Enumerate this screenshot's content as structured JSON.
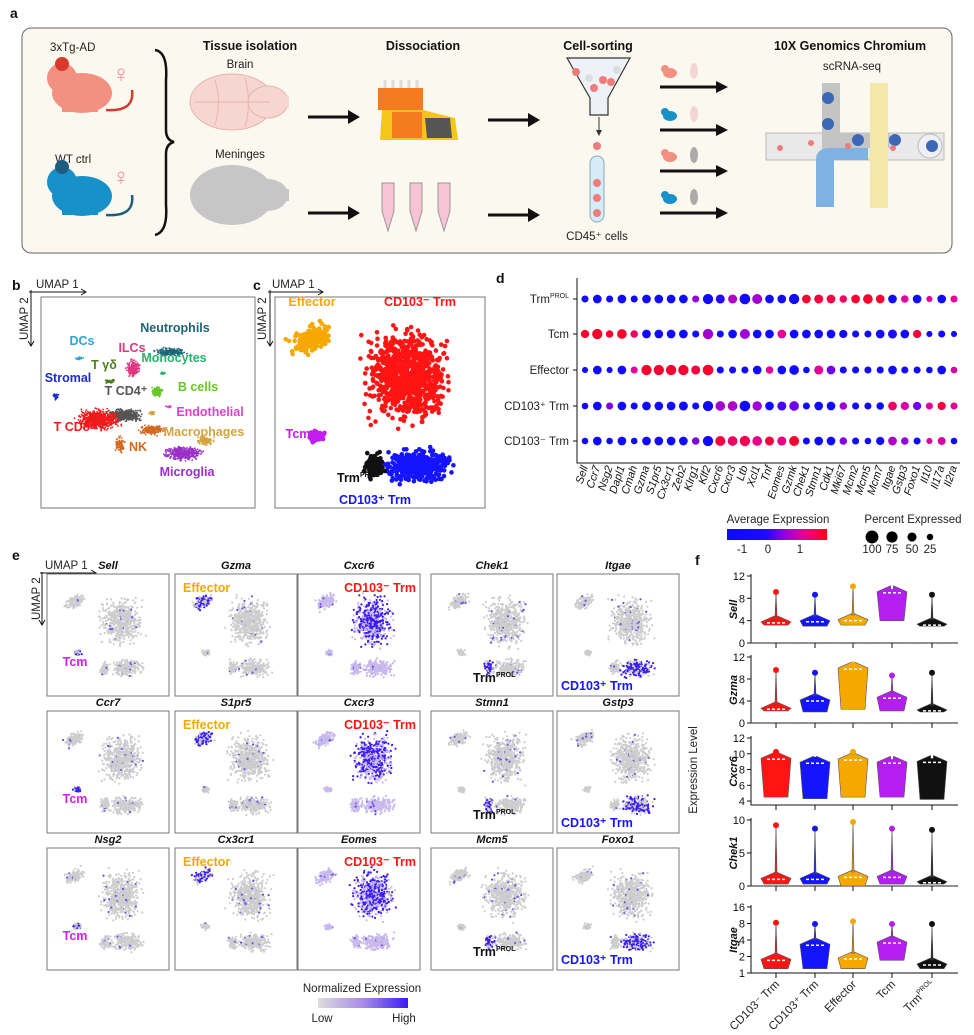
{
  "panel_labels": {
    "a": "a",
    "b": "b",
    "c": "c",
    "d": "d",
    "e": "e",
    "f": "f"
  },
  "panel_a": {
    "group_top": "3xTg-AD",
    "group_bottom": "WT ctrl",
    "female_symbol": "♀",
    "tissue_title": "Tissue isolation",
    "brain": "Brain",
    "meninges": "Meninges",
    "dissociation_title": "Dissociation",
    "sorting_title": "Cell-sorting",
    "cells_label": "CD45⁺ cells",
    "platform_title": "10X Genomics Chromium",
    "assay": "scRNA-seq",
    "colors": {
      "tg": "#f4907f",
      "wt": "#1890c8",
      "panel_bg": "#fbf8ef"
    }
  },
  "panel_b": {
    "axis_x": "UMAP 1",
    "axis_y": "UMAP 2",
    "clusters": [
      {
        "name": "Neutrophils",
        "color": "#1d6476"
      },
      {
        "name": "DCs",
        "color": "#2ba3d8"
      },
      {
        "name": "ILCs",
        "color": "#e0357e"
      },
      {
        "name": "Monocytes",
        "color": "#27b46a"
      },
      {
        "name": "T γδ",
        "color": "#4f7d1e"
      },
      {
        "name": "Stromal",
        "color": "#1b2bd3"
      },
      {
        "name": "B cells",
        "color": "#66c62a"
      },
      {
        "name": "T CD4⁺",
        "color": "#555555"
      },
      {
        "name": "Endothelial",
        "color": "#e23fd2"
      },
      {
        "name": "T CD8⁺",
        "color": "#ee1c1c"
      },
      {
        "name": "Macrophages",
        "color": "#d4a33e"
      },
      {
        "name": "NK",
        "color": "#d2691e"
      },
      {
        "name": "Microglia",
        "color": "#9a2fc8"
      }
    ]
  },
  "panel_c": {
    "axis_x": "UMAP 1",
    "axis_y": "UMAP 2",
    "clusters": [
      {
        "key": "cd103neg",
        "name": "CD103⁻ Trm",
        "sup": "",
        "color": "#ff1414"
      },
      {
        "key": "cd103pos",
        "name": "CD103⁺ Trm",
        "sup": "",
        "color": "#1414ff"
      },
      {
        "key": "prol",
        "name": "Trm",
        "sup": "PROL",
        "color": "#111111"
      },
      {
        "key": "tcm",
        "name": "Tcm",
        "sup": "",
        "color": "#c21ef0"
      },
      {
        "key": "effector",
        "name": "Effector",
        "sup": "",
        "color": "#f5a800"
      }
    ]
  },
  "chart_data": [
    {
      "id": "dotplot",
      "type": "scatter",
      "title": "",
      "rows": [
        {
          "name": "Trm",
          "sup": "PROL"
        },
        {
          "name": "Tcm",
          "sup": ""
        },
        {
          "name": "Effector",
          "sup": ""
        },
        {
          "name": "CD103⁺ Trm",
          "sup": ""
        },
        {
          "name": "CD103⁻ Trm",
          "sup": ""
        }
      ],
      "genes": [
        "Sell",
        "Ccr7",
        "Nsg2",
        "Dapl1",
        "Cmah",
        "Gzma",
        "S1pr5",
        "Cx3cr1",
        "Zeb2",
        "Klrg1",
        "Klf2",
        "Cxcr6",
        "Cxcr3",
        "Ltb",
        "Xcl1",
        "Tnf",
        "Eomes",
        "Gzmk",
        "Chek1",
        "Stmn1",
        "Cdk1",
        "Mki67",
        "Mcm2",
        "Mcm5",
        "Mcm7",
        "Itgae",
        "Gstp3",
        "Foxo1",
        "Il10",
        "Il17a",
        "Il2ra"
      ],
      "avg_expression": [
        [
          -1,
          -1,
          -1,
          -1,
          -1,
          -1,
          -1,
          -1,
          -1,
          0.3,
          -1,
          -0.3,
          0.5,
          -1,
          0.4,
          -1,
          -1,
          -1,
          1.5,
          1.4,
          1.4,
          1.2,
          1.5,
          1.5,
          1.5,
          -1,
          0.9,
          -1,
          0.9,
          -1,
          0.9
        ],
        [
          1.5,
          1.5,
          1.5,
          1.5,
          1.2,
          -1,
          -1,
          -1,
          -1,
          -1,
          0.4,
          -1,
          -1,
          0.4,
          -1,
          -1,
          0.9,
          -1,
          -1,
          -1,
          -1,
          -1,
          -1,
          -1,
          -1,
          -0.3,
          -1,
          1.4,
          -1,
          -1,
          -1
        ],
        [
          -1,
          -1,
          -1,
          -1,
          0.9,
          1.5,
          1.5,
          1.5,
          1.5,
          1.4,
          1.5,
          -1,
          -1,
          -1,
          -1,
          0.9,
          -1,
          -1,
          -1,
          0.9,
          0.1,
          -1,
          -1,
          -1,
          -1,
          -1,
          -1,
          -1,
          -1,
          -1,
          0.8
        ],
        [
          -1,
          -1,
          0.2,
          -1,
          -1,
          -1,
          -1,
          -1,
          -1,
          -1,
          -1,
          0.4,
          0.5,
          -1,
          0.4,
          -1,
          -0.1,
          0.1,
          -1,
          -1,
          -1,
          0.4,
          -1,
          -1,
          -1,
          1.2,
          0.8,
          0.1,
          0.9,
          1.4,
          0.9
        ],
        [
          -1,
          -1,
          -1,
          -1,
          -1,
          -1,
          -1,
          -1,
          -1,
          0.2,
          -1,
          1.4,
          1.2,
          1.3,
          1.0,
          1.4,
          1.0,
          1.5,
          -1,
          -1,
          -1,
          0.2,
          -1,
          -1,
          -1,
          0.5,
          0.3,
          -1,
          0.8,
          0.8,
          -1
        ]
      ],
      "percent_expressed": [
        [
          40,
          60,
          40,
          60,
          40,
          60,
          60,
          60,
          60,
          40,
          85,
          65,
          65,
          90,
          80,
          60,
          60,
          85,
          60,
          65,
          60,
          45,
          60,
          75,
          60,
          60,
          45,
          60,
          30,
          60,
          40
        ],
        [
          55,
          85,
          45,
          75,
          45,
          60,
          60,
          60,
          60,
          40,
          85,
          40,
          60,
          80,
          60,
          60,
          60,
          60,
          60,
          60,
          60,
          55,
          40,
          40,
          60,
          65,
          60,
          55,
          30,
          40,
          30
        ],
        [
          30,
          60,
          30,
          60,
          40,
          85,
          85,
          85,
          85,
          65,
          90,
          40,
          40,
          40,
          60,
          45,
          60,
          75,
          35,
          65,
          60,
          40,
          40,
          40,
          40,
          60,
          40,
          40,
          35,
          60,
          35
        ],
        [
          35,
          60,
          40,
          60,
          40,
          60,
          60,
          60,
          65,
          40,
          85,
          75,
          75,
          90,
          70,
          60,
          65,
          75,
          40,
          60,
          60,
          45,
          40,
          40,
          45,
          60,
          55,
          55,
          40,
          55,
          40
        ],
        [
          35,
          60,
          35,
          60,
          35,
          60,
          60,
          60,
          60,
          45,
          85,
          80,
          75,
          85,
          75,
          65,
          65,
          80,
          40,
          60,
          60,
          45,
          40,
          35,
          55,
          60,
          45,
          40,
          30,
          50,
          35
        ]
      ],
      "color_legend": {
        "title": "Average Expression",
        "ticks": [
          "-1",
          "0",
          "1"
        ]
      },
      "size_legend": {
        "title": "Percent Expressed",
        "values": [
          100,
          75,
          50,
          25
        ],
        "labels": [
          "100",
          "75",
          "50",
          "25"
        ]
      }
    },
    {
      "id": "violins",
      "type": "violin",
      "ylabel": "Expression Level",
      "groups": [
        {
          "name": "CD103⁻ Trm",
          "color": "#ff1414"
        },
        {
          "name": "CD103⁺ Trm",
          "color": "#1414ff"
        },
        {
          "name": "Effector",
          "color": "#f5a800"
        },
        {
          "name": "Tcm",
          "color": "#b41ef0"
        },
        {
          "name": "Trm",
          "sup": "PROL",
          "color": "#111111"
        }
      ],
      "genes": [
        {
          "name": "Sell",
          "scale": "linear",
          "ylim": [
            0,
            12
          ],
          "ticks": [
            0,
            4,
            8,
            12
          ],
          "stats": [
            [
              3.2,
              9.5,
              3.6
            ],
            [
              3.0,
              9.0,
              3.8
            ],
            [
              3.2,
              10.5,
              4.0
            ],
            [
              4.0,
              9.5,
              9.0
            ],
            [
              3.0,
              9.0,
              3.2
            ]
          ]
        },
        {
          "name": "Gzma",
          "scale": "linear",
          "ylim": [
            0,
            12
          ],
          "ticks": [
            0,
            4,
            8,
            12
          ],
          "stats": [
            [
              2.2,
              10,
              2.5
            ],
            [
              2.0,
              9.5,
              4.0
            ],
            [
              2.5,
              11,
              9.8
            ],
            [
              2.2,
              9.0,
              4.5
            ],
            [
              2.0,
              9.5,
              2.2
            ]
          ]
        },
        {
          "name": "Cxcr6",
          "scale": "linear",
          "ylim": [
            3.5,
            12
          ],
          "ticks": [
            4,
            6,
            8,
            10,
            12
          ],
          "stats": [
            [
              4.5,
              10.5,
              9.3
            ],
            [
              4.3,
              9.5,
              8.8
            ],
            [
              4.5,
              10.5,
              9.2
            ],
            [
              4.5,
              9.2,
              8.8
            ],
            [
              4.2,
              9.3,
              8.9
            ]
          ]
        },
        {
          "name": "Chek1",
          "scale": "linear",
          "ylim": [
            0,
            10
          ],
          "ticks": [
            0,
            5,
            10
          ],
          "stats": [
            [
              0.3,
              9.5,
              1.0
            ],
            [
              0.3,
              9.0,
              1.0
            ],
            [
              0.0,
              10,
              1.3
            ],
            [
              0.3,
              9.0,
              1.3
            ],
            [
              0.3,
              8.8,
              0.5
            ]
          ]
        },
        {
          "name": "Itgae",
          "scale": "log2",
          "ylim": [
            1,
            16
          ],
          "ticks": [
            1,
            2,
            4,
            8,
            16
          ],
          "stats": [
            [
              1.2,
              9.0,
              1.7
            ],
            [
              1.2,
              8.5,
              3.2
            ],
            [
              1.2,
              9.5,
              1.8
            ],
            [
              1.7,
              8.5,
              3.5
            ],
            [
              1.2,
              8.5,
              1.4
            ]
          ]
        }
      ]
    }
  ],
  "panel_e": {
    "axis_x": "UMAP 1",
    "axis_y": "UMAP 2",
    "plots": [
      {
        "gene": "Sell",
        "label": "Tcm",
        "sup": "",
        "target": "tcm"
      },
      {
        "gene": "Gzma",
        "label": "Effector",
        "sup": "",
        "target": "effector"
      },
      {
        "gene": "Cxcr6",
        "label": "CD103⁻ Trm",
        "sup": "",
        "target": "cd103neg"
      },
      {
        "gene": "Chek1",
        "label": "Trm",
        "sup": "PROL",
        "target": "prol"
      },
      {
        "gene": "Itgae",
        "label": "CD103⁺ Trm",
        "sup": "",
        "target": "cd103pos"
      },
      {
        "gene": "Ccr7",
        "label": "Tcm",
        "sup": "",
        "target": "tcm"
      },
      {
        "gene": "S1pr5",
        "label": "Effector",
        "sup": "",
        "target": "effector"
      },
      {
        "gene": "Cxcr3",
        "label": "CD103⁻ Trm",
        "sup": "",
        "target": "cd103neg"
      },
      {
        "gene": "Stmn1",
        "label": "Trm",
        "sup": "PROL",
        "target": "prol"
      },
      {
        "gene": "Gstp3",
        "label": "CD103⁺ Trm",
        "sup": "",
        "target": "cd103pos"
      },
      {
        "gene": "Nsg2",
        "label": "Tcm",
        "sup": "",
        "target": "tcm"
      },
      {
        "gene": "Cx3cr1",
        "label": "Effector",
        "sup": "",
        "target": "effector"
      },
      {
        "gene": "Eomes",
        "label": "CD103⁻ Trm",
        "sup": "",
        "target": "cd103neg"
      },
      {
        "gene": "Mcm5",
        "label": "Trm",
        "sup": "PROL",
        "target": "prol"
      },
      {
        "gene": "Foxo1",
        "label": "CD103⁺ Trm",
        "sup": "",
        "target": "cd103pos"
      }
    ],
    "legend": {
      "title": "Normalized Expression",
      "low": "Low",
      "high": "High"
    }
  }
}
